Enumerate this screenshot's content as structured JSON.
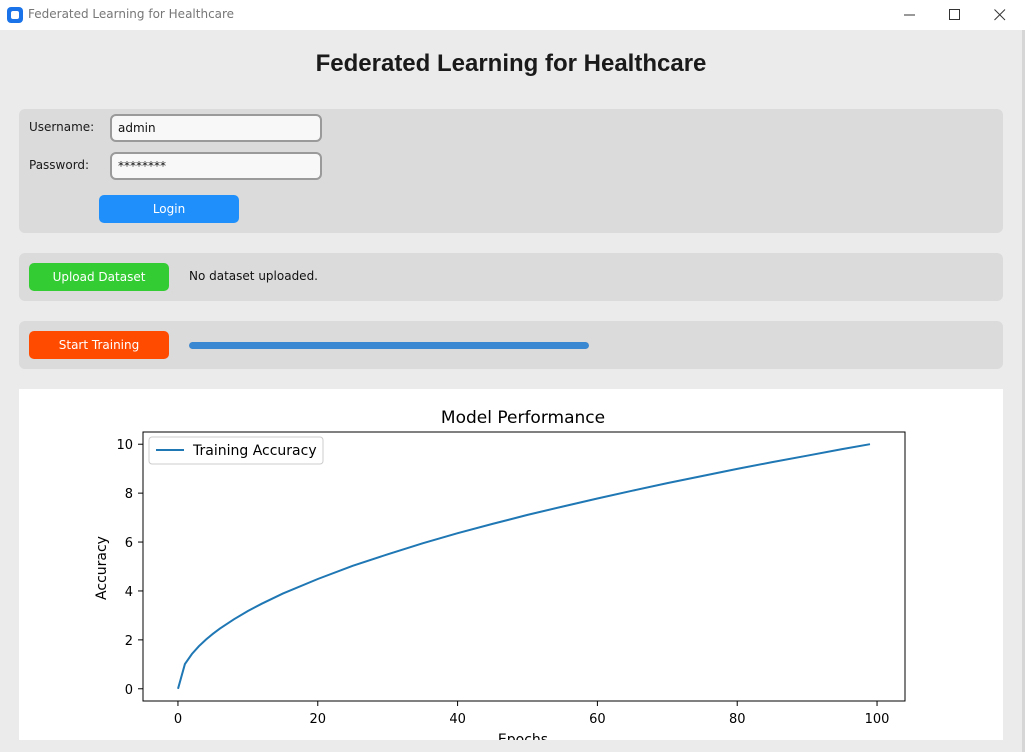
{
  "window": {
    "title": "Federated Learning for Healthcare",
    "controls": [
      "minimize-icon",
      "maximize-icon",
      "close-icon"
    ]
  },
  "header": {
    "title": "Federated Learning for Healthcare"
  },
  "login": {
    "username_label": "Username:",
    "username_value": "admin",
    "password_label": "Password:",
    "password_value": "********",
    "login_button": "Login"
  },
  "upload": {
    "button_label": "Upload Dataset",
    "status_text": "No dataset uploaded."
  },
  "training": {
    "button_label": "Start Training",
    "progress": 1.0
  },
  "colors": {
    "login_button": "#1f8ffb",
    "upload_button": "#33cc33",
    "train_button": "#ff4b00",
    "progress": "#3a87d2",
    "line": "#1f77b4"
  },
  "chart_data": {
    "type": "line",
    "title": "Model Performance",
    "xlabel": "Epochs",
    "ylabel": "Accuracy",
    "xlim": [
      -5,
      104
    ],
    "ylim": [
      -0.5,
      10.5
    ],
    "xticks": [
      0,
      20,
      40,
      60,
      80,
      100
    ],
    "yticks": [
      0,
      2,
      4,
      6,
      8,
      10
    ],
    "grid": false,
    "legend_position": "top-left",
    "series": [
      {
        "name": "Training Accuracy",
        "x": [
          0,
          1,
          2,
          3,
          4,
          5,
          6,
          8,
          10,
          12,
          15,
          20,
          25,
          30,
          35,
          40,
          45,
          50,
          55,
          60,
          65,
          70,
          75,
          80,
          85,
          90,
          95,
          99
        ],
        "y": [
          0,
          1.01,
          1.42,
          1.74,
          2.01,
          2.25,
          2.46,
          2.84,
          3.18,
          3.48,
          3.89,
          4.49,
          5.03,
          5.5,
          5.95,
          6.36,
          6.74,
          7.11,
          7.45,
          7.78,
          8.1,
          8.41,
          8.7,
          8.99,
          9.27,
          9.53,
          9.8,
          10.0
        ]
      }
    ]
  }
}
